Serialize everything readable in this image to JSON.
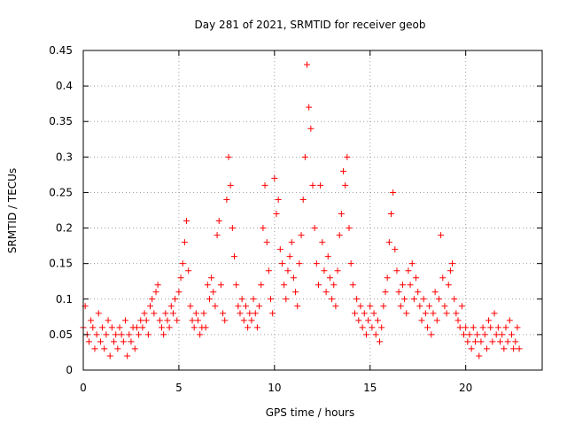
{
  "chart_data": {
    "type": "scatter",
    "title": "Day 281 of 2021, SRMTID for receiver geob",
    "xlabel": "GPS time / hours",
    "ylabel": "SRMTID / TECUs",
    "xlim": [
      0,
      24
    ],
    "ylim": [
      0,
      0.45
    ],
    "x_ticks": [
      0,
      5,
      10,
      15,
      20
    ],
    "x_tick_labels": [
      "0",
      "5",
      "10",
      "15",
      "20"
    ],
    "y_ticks": [
      0,
      0.05,
      0.1,
      0.15,
      0.2,
      0.25,
      0.3,
      0.35,
      0.4,
      0.45
    ],
    "y_tick_labels": [
      "0",
      "0.05",
      "0.1",
      "0.15",
      "0.2",
      "0.25",
      "0.3",
      "0.35",
      "0.4",
      "0.45"
    ],
    "grid": true,
    "marker": "+",
    "marker_color": "#ff0000",
    "series": [
      {
        "name": "SRMTID",
        "points": [
          [
            0.0,
            0.06
          ],
          [
            0.1,
            0.09
          ],
          [
            0.2,
            0.05
          ],
          [
            0.3,
            0.04
          ],
          [
            0.4,
            0.07
          ],
          [
            0.5,
            0.06
          ],
          [
            0.6,
            0.03
          ],
          [
            0.7,
            0.05
          ],
          [
            0.8,
            0.08
          ],
          [
            0.9,
            0.04
          ],
          [
            1.0,
            0.06
          ],
          [
            1.1,
            0.03
          ],
          [
            1.2,
            0.05
          ],
          [
            1.3,
            0.07
          ],
          [
            1.4,
            0.02
          ],
          [
            1.5,
            0.06
          ],
          [
            1.6,
            0.04
          ],
          [
            1.7,
            0.05
          ],
          [
            1.8,
            0.03
          ],
          [
            1.9,
            0.06
          ],
          [
            2.0,
            0.05
          ],
          [
            2.1,
            0.04
          ],
          [
            2.2,
            0.07
          ],
          [
            2.3,
            0.02
          ],
          [
            2.4,
            0.05
          ],
          [
            2.5,
            0.04
          ],
          [
            2.6,
            0.06
          ],
          [
            2.7,
            0.03
          ],
          [
            2.8,
            0.06
          ],
          [
            2.9,
            0.05
          ],
          [
            3.0,
            0.07
          ],
          [
            3.1,
            0.06
          ],
          [
            3.2,
            0.08
          ],
          [
            3.3,
            0.07
          ],
          [
            3.4,
            0.05
          ],
          [
            3.5,
            0.09
          ],
          [
            3.6,
            0.1
          ],
          [
            3.7,
            0.08
          ],
          [
            3.8,
            0.11
          ],
          [
            3.9,
            0.12
          ],
          [
            4.0,
            0.07
          ],
          [
            4.1,
            0.06
          ],
          [
            4.2,
            0.05
          ],
          [
            4.3,
            0.08
          ],
          [
            4.4,
            0.07
          ],
          [
            4.5,
            0.06
          ],
          [
            4.6,
            0.09
          ],
          [
            4.7,
            0.08
          ],
          [
            4.8,
            0.1
          ],
          [
            4.9,
            0.07
          ],
          [
            5.0,
            0.11
          ],
          [
            5.1,
            0.13
          ],
          [
            5.2,
            0.15
          ],
          [
            5.3,
            0.18
          ],
          [
            5.4,
            0.21
          ],
          [
            5.5,
            0.14
          ],
          [
            5.6,
            0.09
          ],
          [
            5.7,
            0.07
          ],
          [
            5.8,
            0.06
          ],
          [
            5.9,
            0.08
          ],
          [
            6.0,
            0.07
          ],
          [
            6.1,
            0.05
          ],
          [
            6.2,
            0.06
          ],
          [
            6.3,
            0.08
          ],
          [
            6.4,
            0.06
          ],
          [
            6.5,
            0.12
          ],
          [
            6.6,
            0.1
          ],
          [
            6.7,
            0.13
          ],
          [
            6.8,
            0.11
          ],
          [
            6.9,
            0.09
          ],
          [
            7.0,
            0.19
          ],
          [
            7.1,
            0.21
          ],
          [
            7.2,
            0.12
          ],
          [
            7.3,
            0.08
          ],
          [
            7.4,
            0.07
          ],
          [
            7.5,
            0.24
          ],
          [
            7.6,
            0.3
          ],
          [
            7.7,
            0.26
          ],
          [
            7.8,
            0.2
          ],
          [
            7.9,
            0.16
          ],
          [
            8.0,
            0.12
          ],
          [
            8.1,
            0.09
          ],
          [
            8.2,
            0.08
          ],
          [
            8.3,
            0.1
          ],
          [
            8.4,
            0.07
          ],
          [
            8.5,
            0.09
          ],
          [
            8.6,
            0.06
          ],
          [
            8.7,
            0.08
          ],
          [
            8.8,
            0.07
          ],
          [
            8.9,
            0.1
          ],
          [
            9.0,
            0.08
          ],
          [
            9.1,
            0.06
          ],
          [
            9.2,
            0.09
          ],
          [
            9.3,
            0.12
          ],
          [
            9.4,
            0.2
          ],
          [
            9.5,
            0.26
          ],
          [
            9.6,
            0.18
          ],
          [
            9.7,
            0.14
          ],
          [
            9.8,
            0.1
          ],
          [
            9.9,
            0.08
          ],
          [
            10.0,
            0.27
          ],
          [
            10.1,
            0.22
          ],
          [
            10.2,
            0.24
          ],
          [
            10.3,
            0.17
          ],
          [
            10.4,
            0.15
          ],
          [
            10.5,
            0.12
          ],
          [
            10.6,
            0.1
          ],
          [
            10.7,
            0.14
          ],
          [
            10.8,
            0.16
          ],
          [
            10.9,
            0.18
          ],
          [
            11.0,
            0.13
          ],
          [
            11.1,
            0.11
          ],
          [
            11.2,
            0.09
          ],
          [
            11.3,
            0.15
          ],
          [
            11.4,
            0.19
          ],
          [
            11.5,
            0.24
          ],
          [
            11.6,
            0.3
          ],
          [
            11.7,
            0.43
          ],
          [
            11.8,
            0.37
          ],
          [
            11.9,
            0.34
          ],
          [
            12.0,
            0.26
          ],
          [
            12.1,
            0.2
          ],
          [
            12.2,
            0.15
          ],
          [
            12.3,
            0.12
          ],
          [
            12.4,
            0.26
          ],
          [
            12.5,
            0.18
          ],
          [
            12.6,
            0.14
          ],
          [
            12.7,
            0.11
          ],
          [
            12.8,
            0.16
          ],
          [
            12.9,
            0.13
          ],
          [
            13.0,
            0.1
          ],
          [
            13.1,
            0.12
          ],
          [
            13.2,
            0.09
          ],
          [
            13.3,
            0.14
          ],
          [
            13.4,
            0.19
          ],
          [
            13.5,
            0.22
          ],
          [
            13.6,
            0.28
          ],
          [
            13.7,
            0.26
          ],
          [
            13.8,
            0.3
          ],
          [
            13.9,
            0.2
          ],
          [
            14.0,
            0.15
          ],
          [
            14.1,
            0.12
          ],
          [
            14.2,
            0.08
          ],
          [
            14.3,
            0.1
          ],
          [
            14.4,
            0.07
          ],
          [
            14.5,
            0.09
          ],
          [
            14.6,
            0.06
          ],
          [
            14.7,
            0.08
          ],
          [
            14.8,
            0.05
          ],
          [
            14.9,
            0.07
          ],
          [
            15.0,
            0.09
          ],
          [
            15.1,
            0.06
          ],
          [
            15.2,
            0.08
          ],
          [
            15.3,
            0.05
          ],
          [
            15.4,
            0.07
          ],
          [
            15.5,
            0.04
          ],
          [
            15.6,
            0.06
          ],
          [
            15.7,
            0.09
          ],
          [
            15.8,
            0.11
          ],
          [
            15.9,
            0.13
          ],
          [
            16.0,
            0.18
          ],
          [
            16.1,
            0.22
          ],
          [
            16.2,
            0.25
          ],
          [
            16.3,
            0.17
          ],
          [
            16.4,
            0.14
          ],
          [
            16.5,
            0.11
          ],
          [
            16.6,
            0.09
          ],
          [
            16.7,
            0.12
          ],
          [
            16.8,
            0.1
          ],
          [
            16.9,
            0.08
          ],
          [
            17.0,
            0.14
          ],
          [
            17.1,
            0.12
          ],
          [
            17.2,
            0.15
          ],
          [
            17.3,
            0.1
          ],
          [
            17.4,
            0.13
          ],
          [
            17.5,
            0.11
          ],
          [
            17.6,
            0.09
          ],
          [
            17.7,
            0.07
          ],
          [
            17.8,
            0.1
          ],
          [
            17.9,
            0.08
          ],
          [
            18.0,
            0.06
          ],
          [
            18.1,
            0.09
          ],
          [
            18.2,
            0.05
          ],
          [
            18.3,
            0.08
          ],
          [
            18.4,
            0.11
          ],
          [
            18.5,
            0.07
          ],
          [
            18.6,
            0.1
          ],
          [
            18.7,
            0.19
          ],
          [
            18.8,
            0.13
          ],
          [
            18.9,
            0.09
          ],
          [
            19.0,
            0.08
          ],
          [
            19.1,
            0.12
          ],
          [
            19.2,
            0.14
          ],
          [
            19.3,
            0.15
          ],
          [
            19.4,
            0.1
          ],
          [
            19.5,
            0.08
          ],
          [
            19.6,
            0.07
          ],
          [
            19.7,
            0.06
          ],
          [
            19.8,
            0.09
          ],
          [
            19.9,
            0.05
          ],
          [
            20.0,
            0.06
          ],
          [
            20.1,
            0.04
          ],
          [
            20.2,
            0.05
          ],
          [
            20.3,
            0.03
          ],
          [
            20.4,
            0.06
          ],
          [
            20.5,
            0.04
          ],
          [
            20.6,
            0.05
          ],
          [
            20.7,
            0.02
          ],
          [
            20.8,
            0.04
          ],
          [
            20.9,
            0.06
          ],
          [
            21.0,
            0.05
          ],
          [
            21.1,
            0.03
          ],
          [
            21.2,
            0.07
          ],
          [
            21.3,
            0.06
          ],
          [
            21.4,
            0.04
          ],
          [
            21.5,
            0.08
          ],
          [
            21.6,
            0.05
          ],
          [
            21.7,
            0.06
          ],
          [
            21.8,
            0.04
          ],
          [
            21.9,
            0.05
          ],
          [
            22.0,
            0.03
          ],
          [
            22.1,
            0.06
          ],
          [
            22.2,
            0.04
          ],
          [
            22.3,
            0.07
          ],
          [
            22.4,
            0.05
          ],
          [
            22.5,
            0.03
          ],
          [
            22.6,
            0.04
          ],
          [
            22.7,
            0.06
          ],
          [
            22.8,
            0.03
          ]
        ]
      }
    ]
  }
}
